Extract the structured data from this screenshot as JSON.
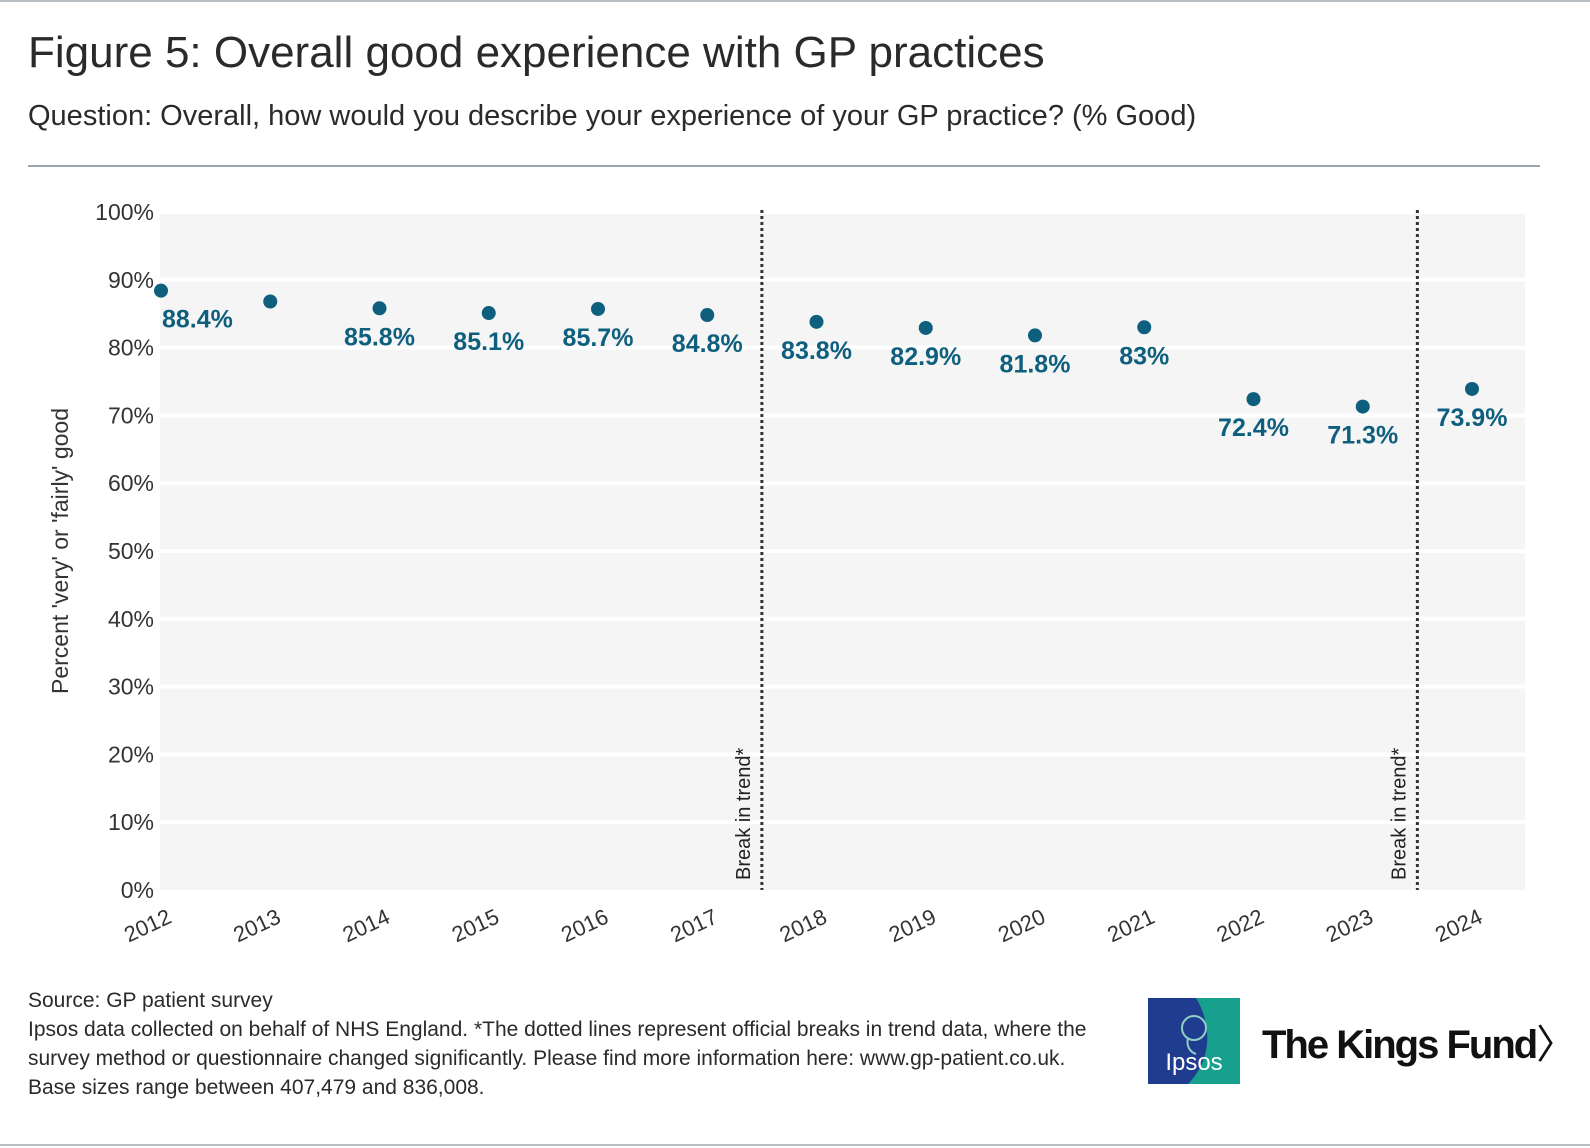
{
  "title": "Figure 5: Overall good experience with GP practices",
  "subtitle": "Question: Overall, how would you describe your experience of your GP practice? (% Good)",
  "chart_data": {
    "type": "scatter",
    "title": "Figure 5: Overall good experience with GP practices",
    "ylabel": "Percent 'very' or 'fairly' good",
    "xlabel": "",
    "ylim": [
      0,
      100
    ],
    "yticks": [
      "0%",
      "10%",
      "20%",
      "30%",
      "40%",
      "50%",
      "60%",
      "70%",
      "80%",
      "90%",
      "100%"
    ],
    "x": [
      "2012",
      "2013",
      "2014",
      "2015",
      "2016",
      "2017",
      "2018",
      "2019",
      "2020",
      "2021",
      "2022",
      "2023",
      "2024"
    ],
    "values": [
      88.4,
      86.8,
      85.8,
      85.1,
      85.7,
      84.8,
      83.8,
      82.9,
      81.8,
      83,
      72.4,
      71.3,
      73.9
    ],
    "labels": [
      "88.4%",
      "",
      "85.8%",
      "85.1%",
      "85.7%",
      "84.8%",
      "83.8%",
      "82.9%",
      "81.8%",
      "83%",
      "72.4%",
      "71.3%",
      "73.9%"
    ],
    "breaks": [
      {
        "between": [
          "2017",
          "2018"
        ],
        "label": "Break in trend*"
      },
      {
        "between": [
          "2023",
          "2024"
        ],
        "label": "Break in trend*"
      }
    ],
    "colors": {
      "point": "#0e5f7e",
      "label": "#0e5f7e",
      "panel": "#f5f5f5",
      "grid": "#ffffff",
      "break": "#333333"
    }
  },
  "footer": {
    "source": "Source: GP patient survey",
    "note": "Ipsos data collected on behalf of NHS England. *The dotted lines represent official breaks in trend data, where the survey method or questionnaire changed significantly. Please find more information here: www.gp-patient.co.uk. Base sizes range between 407,479 and 836,008."
  },
  "logos": {
    "ipsos": "Ipsos",
    "kings_fund": "The Kings Fund"
  }
}
